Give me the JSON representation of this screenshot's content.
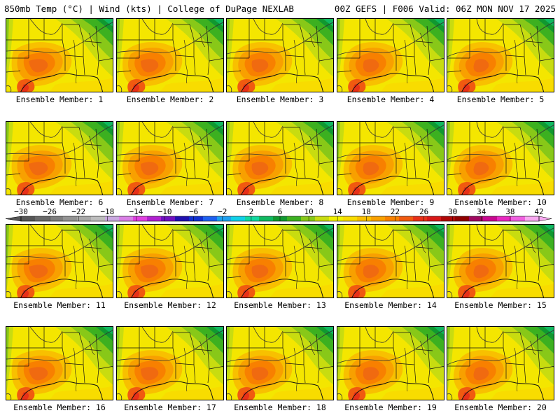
{
  "header": {
    "left_title": "850mb Temp (°C) | Wind (kts) | College of DuPage NEXLAB",
    "right_title": "00Z GEFS | F006 Valid: 06Z MON NOV 17 2025"
  },
  "chart_data": {
    "type": "heatmap",
    "title": "850mb Temp (°C) | Wind (kts)",
    "model": "00Z GEFS",
    "forecast_hour": "F006",
    "valid": "06Z MON NOV 17 2025",
    "panels": [
      "Ensemble Member: 1",
      "Ensemble Member: 2",
      "Ensemble Member: 3",
      "Ensemble Member: 4",
      "Ensemble Member: 5",
      "Ensemble Member: 6",
      "Ensemble Member: 7",
      "Ensemble Member: 8",
      "Ensemble Member: 9",
      "Ensemble Member: 10",
      "Ensemble Member: 11",
      "Ensemble Member: 12",
      "Ensemble Member: 13",
      "Ensemble Member: 14",
      "Ensemble Member: 15",
      "Ensemble Member: 16",
      "Ensemble Member: 17",
      "Ensemble Member: 18",
      "Ensemble Member: 19",
      "Ensemble Member: 20"
    ],
    "colorbar": {
      "units": "°C",
      "tick_labels": [
        "−30",
        "−26",
        "−22",
        "−18",
        "−14",
        "−10",
        "−6",
        "−2",
        "2",
        "6",
        "10",
        "14",
        "18",
        "22",
        "26",
        "30",
        "34",
        "38",
        "42"
      ],
      "colors": [
        "#555555",
        "#6a6a6a",
        "#7e7e7e",
        "#939393",
        "#a8a8a8",
        "#bdbdbd",
        "#c9a8e0",
        "#d97fe5",
        "#e040e0",
        "#b020d0",
        "#7010c0",
        "#2010b0",
        "#1030d0",
        "#1e60f0",
        "#1ea0f0",
        "#10d0e8",
        "#10d8a0",
        "#10b860",
        "#109830",
        "#3cb020",
        "#88c818",
        "#c8dc10",
        "#f0f000",
        "#f8dc00",
        "#f8c000",
        "#f8a000",
        "#f88000",
        "#f05a10",
        "#e83018",
        "#d81818",
        "#b00808",
        "#900000",
        "#a00860",
        "#c80890",
        "#e828c0",
        "#f060e0",
        "#f8a8f0"
      ]
    }
  }
}
